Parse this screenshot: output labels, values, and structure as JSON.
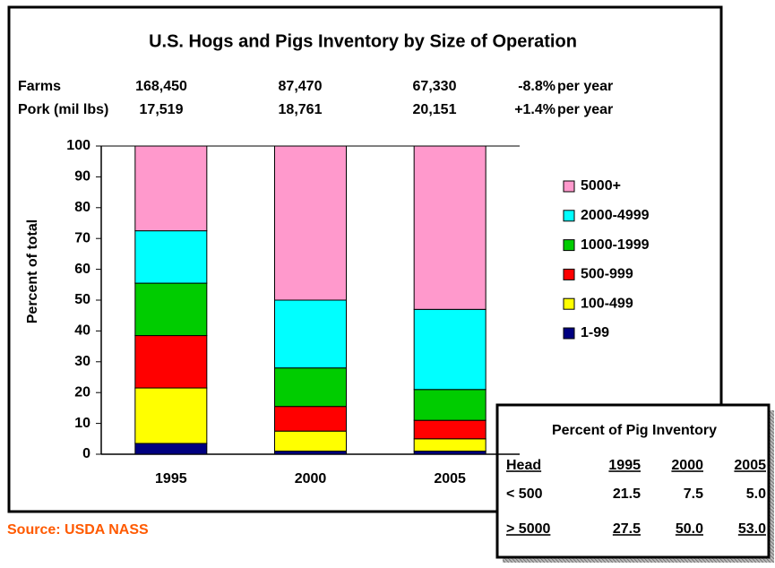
{
  "chart_data": {
    "type": "stacked_bar",
    "title": "U.S. Hogs and Pigs Inventory by Size of Operation",
    "y_label": "Percent of total",
    "categories": [
      "1995",
      "2000",
      "2005"
    ],
    "series": [
      {
        "name": "1-99",
        "color": "#000080",
        "values": [
          3.5,
          1,
          1
        ]
      },
      {
        "name": "100-499",
        "color": "#ffff00",
        "values": [
          18,
          6.5,
          4
        ]
      },
      {
        "name": "500-999",
        "color": "#ff0000",
        "values": [
          17,
          8,
          6
        ]
      },
      {
        "name": "1000-1999",
        "color": "#00cc00",
        "values": [
          17,
          12.5,
          10
        ]
      },
      {
        "name": "2000-4999",
        "color": "#00ffff",
        "values": [
          17,
          22,
          26
        ]
      },
      {
        "name": "5000+",
        "color": "#ff99cc",
        "values": [
          27.5,
          50,
          53
        ]
      }
    ],
    "ylim": [
      0,
      100
    ],
    "yticks": [
      0,
      10,
      20,
      30,
      40,
      50,
      60,
      70,
      80,
      90,
      100
    ],
    "legend": "right"
  },
  "summary_rows": [
    {
      "label": "Farms",
      "values": [
        "168,450",
        "87,470",
        "67,330"
      ],
      "change": "-8.8%",
      "unit": "per year"
    },
    {
      "label": "Pork (mil lbs)",
      "values": [
        "17,519",
        "18,761",
        "20,151"
      ],
      "change": "+1.4%",
      "unit": "per year"
    }
  ],
  "inset_table": {
    "title": "Percent of Pig Inventory",
    "header": [
      "Head",
      "1995",
      "2000",
      "2005"
    ],
    "rows": [
      [
        "< 500",
        "21.5",
        "7.5",
        "5.0"
      ],
      [
        "> 5000",
        "27.5",
        "50.0",
        "53.0"
      ]
    ]
  },
  "source": "Source:  USDA NASS"
}
